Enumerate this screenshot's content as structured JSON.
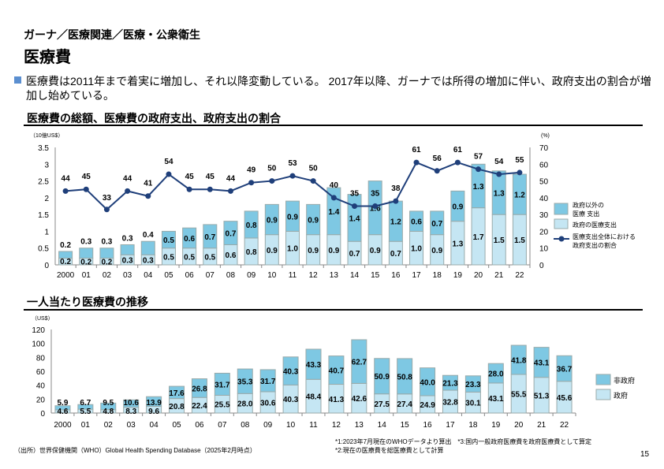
{
  "breadcrumb": "ガーナ／医療関連／医療・公衆衛生",
  "page_title": "医療費",
  "description": "医療費は2011年まで着実に増加し、それ以降変動している。 2017年以降、ガーナでは所得の増加に伴い、政府支出の割合が増加し始めている。",
  "chart_data": [
    {
      "type": "bar",
      "stacked": true,
      "title": "医療費の総額、医療費の政府支出、政府支出の割合",
      "ylabel": "（10億US$）",
      "y2label": "(%)",
      "ylim": [
        0,
        3.5
      ],
      "y2lim": [
        0,
        70
      ],
      "yticks": [
        "0",
        "0.5",
        "1",
        "1.5",
        "2",
        "2.5",
        "3",
        "3.5"
      ],
      "y2ticks": [
        "0",
        "10",
        "20",
        "30",
        "40",
        "50",
        "60",
        "70"
      ],
      "categories": [
        "2000",
        "01",
        "02",
        "03",
        "04",
        "05",
        "06",
        "07",
        "08",
        "09",
        "10",
        "11",
        "12",
        "13",
        "14",
        "15",
        "16",
        "17",
        "18",
        "19",
        "20",
        "21",
        "22"
      ],
      "series": [
        {
          "name": "政府の医療支出",
          "kind": "bar",
          "color": "#c5e6f3",
          "values": [
            0.2,
            0.2,
            0.2,
            0.3,
            0.3,
            0.5,
            0.5,
            0.5,
            0.6,
            0.8,
            0.9,
            1.0,
            0.9,
            0.9,
            0.7,
            0.9,
            0.7,
            1.0,
            0.9,
            1.3,
            1.7,
            1.5,
            1.5
          ]
        },
        {
          "name": "政府以外の医療 支出",
          "kind": "bar",
          "color": "#7ec8e3",
          "values": [
            0.2,
            0.3,
            0.3,
            0.3,
            0.4,
            0.5,
            0.6,
            0.7,
            0.7,
            0.8,
            0.9,
            0.9,
            0.9,
            1.4,
            1.4,
            1.6,
            1.2,
            0.6,
            0.7,
            0.9,
            1.3,
            1.3,
            1.2
          ]
        },
        {
          "name": "医療支出全体における政府支出の割合",
          "kind": "line",
          "axis": "right",
          "color": "#1f3f7a",
          "values": [
            44,
            45,
            33,
            44,
            41,
            54,
            45,
            45,
            44,
            49,
            50,
            53,
            50,
            40,
            35,
            35,
            38,
            61,
            56,
            61,
            57,
            54,
            55
          ]
        }
      ],
      "legend": [
        "政府以外の",
        "医療 支出",
        "政府の医療支出",
        "医療支出全体における",
        "政府支出の割合"
      ],
      "legend_position": "right"
    },
    {
      "type": "bar",
      "stacked": true,
      "title": "一人当たり医療費の推移",
      "ylabel": "（US$）",
      "ylim": [
        0,
        120
      ],
      "yticks": [
        "0",
        "20",
        "40",
        "60",
        "80",
        "100",
        "120"
      ],
      "categories": [
        "2000",
        "01",
        "02",
        "03",
        "04",
        "05",
        "06",
        "07",
        "08",
        "09",
        "10",
        "11",
        "12",
        "13",
        "14",
        "15",
        "16",
        "17",
        "18",
        "19",
        "20",
        "21",
        "22"
      ],
      "series": [
        {
          "name": "政府",
          "color": "#c5e6f3",
          "values": [
            "4.6",
            "5.5",
            "4.8",
            "8.3",
            "9.6",
            "20.8",
            "22.4",
            "25.5",
            "28.0",
            "30.6",
            "40.3",
            "48.4",
            "41.3",
            "42.6",
            "27.5",
            "27.4",
            "24.9",
            "32.8",
            "30.1",
            "43.1",
            "55.5",
            "51.3",
            "45.6"
          ]
        },
        {
          "name": "非政府",
          "color": "#7ec8e3",
          "values": [
            "5.9",
            "6.7",
            "9.5",
            "10.6",
            "13.9",
            "17.6",
            "26.8",
            "31.7",
            "35.3",
            "31.7",
            "40.3",
            "43.3",
            "40.7",
            "62.7",
            "50.9",
            "50.8",
            "40.0",
            "21.3",
            "23.3",
            "28.0",
            "41.8",
            "43.1",
            "36.7"
          ]
        }
      ],
      "legend_position": "right"
    }
  ],
  "footer": {
    "source": "（出所）世界保健機関（WHO）Global Health Spending Database（2025年2月時点）",
    "note1": "*1:2023年7月現在のWHOデータより算出　*3:国内一般政府医療費を政府医療費として算定",
    "note2": "*2:現在の医療費を総医療費として計算",
    "page": "15"
  }
}
